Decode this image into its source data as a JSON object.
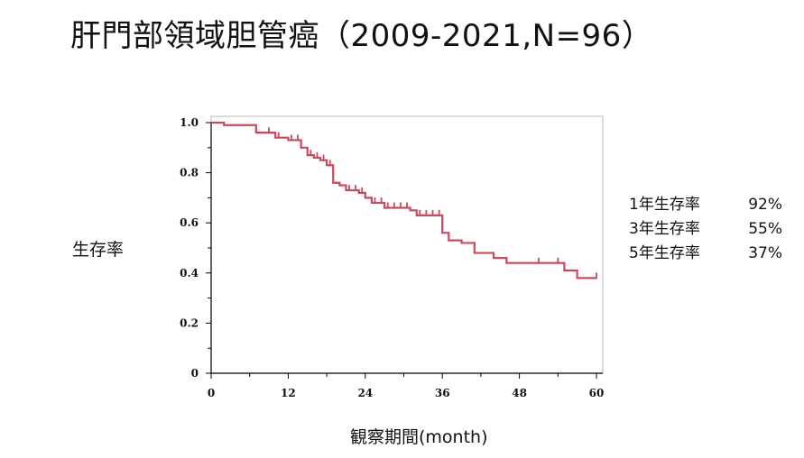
{
  "title": "肝門部領域胆管癌（2009-2021,N=96）",
  "rates": [
    {
      "label": "1年生存率",
      "value": "92%"
    },
    {
      "label": "3年生存率",
      "value": "55%"
    },
    {
      "label": "5年生存率",
      "value": "37%"
    }
  ],
  "chart_data": {
    "type": "line",
    "title": "",
    "xlabel": "観察期間(month)",
    "ylabel": "生存率",
    "xlim": [
      0,
      60
    ],
    "ylim": [
      0,
      1.0
    ],
    "x_ticks": [
      "0",
      "12",
      "24",
      "36",
      "48",
      "60"
    ],
    "y_ticks": [
      "0",
      "0.2",
      "0.4",
      "0.6",
      "0.8",
      "1.0"
    ],
    "grid": false,
    "line_color": "#c94a5a",
    "series": [
      {
        "x": [
          0,
          2,
          4,
          7,
          10,
          12,
          14,
          15,
          16,
          17,
          18,
          19,
          20,
          21,
          23,
          24,
          25,
          27,
          31,
          32,
          36,
          37,
          39,
          41,
          44,
          46,
          50,
          52,
          55,
          57,
          60
        ],
        "y": [
          1.0,
          0.99,
          0.99,
          0.96,
          0.94,
          0.93,
          0.9,
          0.87,
          0.86,
          0.85,
          0.83,
          0.76,
          0.75,
          0.73,
          0.72,
          0.7,
          0.68,
          0.66,
          0.65,
          0.63,
          0.56,
          0.53,
          0.52,
          0.48,
          0.46,
          0.44,
          0.44,
          0.44,
          0.41,
          0.38,
          0.38
        ]
      }
    ],
    "censor_x": [
      9,
      10.5,
      12.5,
      13.5,
      15.5,
      16.5,
      17.5,
      18.5,
      21.5,
      22.5,
      23.5,
      25.5,
      26.5,
      27.5,
      28.5,
      29.5,
      30.5,
      32.5,
      33.5,
      34.5,
      35.5,
      51,
      54,
      60
    ]
  }
}
